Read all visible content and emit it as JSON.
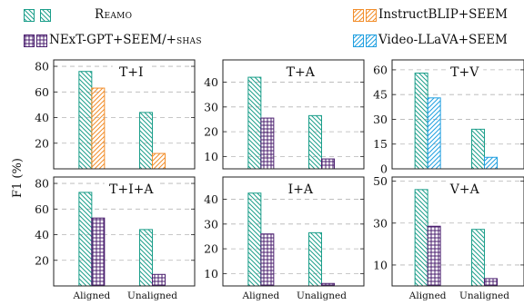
{
  "legend": [
    {
      "label": "Reamo",
      "color": "#1b9e8a",
      "pattern": "diag-back",
      "smallcaps": true
    },
    {
      "label": "InstructBLIP+SEEM",
      "color": "#f28e2b",
      "pattern": "diag-fwd",
      "smallcaps": false
    },
    {
      "label": "NExT-GPT+SEEM/+SHAS",
      "color": "#4b1f6f",
      "pattern": "grid",
      "smallcaps": false
    },
    {
      "label": "Video-LLaVA+SEEM",
      "color": "#1f9fe0",
      "pattern": "diag-fwd",
      "smallcaps": false
    }
  ],
  "ylabel": "F1 (%)",
  "colors": {
    "Reamo": "#1b9e8a",
    "InstructBLIP+SEEM": "#f28e2b",
    "NExT-GPT+SEEM/+SHAS": "#4b1f6f",
    "Video-LLaVA+SEEM": "#1f9fe0"
  },
  "chart_data": [
    {
      "type": "bar",
      "title": "T+I",
      "categories": [
        "Aligned",
        "Unaligned"
      ],
      "ylim": [
        0,
        85
      ],
      "yticks": [
        20,
        40,
        60,
        80
      ],
      "series": [
        {
          "name": "Reamo",
          "values": [
            76,
            44
          ]
        },
        {
          "name": "InstructBLIP+SEEM",
          "values": [
            63,
            12
          ]
        }
      ],
      "show_xticklabels": false
    },
    {
      "type": "bar",
      "title": "T+A",
      "categories": [
        "Aligned",
        "Unaligned"
      ],
      "ylim": [
        5,
        49
      ],
      "yticks": [
        10,
        20,
        30,
        40
      ],
      "series": [
        {
          "name": "Reamo",
          "values": [
            42,
            26.5
          ]
        },
        {
          "name": "NExT-GPT+SEEM/+SHAS",
          "values": [
            25.5,
            9
          ]
        }
      ],
      "show_xticklabels": false
    },
    {
      "type": "bar",
      "title": "T+V",
      "categories": [
        "Aligned",
        "Unaligned"
      ],
      "ylim": [
        0,
        66
      ],
      "yticks": [
        0,
        15,
        30,
        45,
        60
      ],
      "series": [
        {
          "name": "Reamo",
          "values": [
            58,
            24
          ]
        },
        {
          "name": "Video-LLaVA+SEEM",
          "values": [
            43,
            7
          ]
        }
      ],
      "show_xticklabels": false
    },
    {
      "type": "bar",
      "title": "T+I+A",
      "categories": [
        "Aligned",
        "Unaligned"
      ],
      "ylim": [
        0,
        85
      ],
      "yticks": [
        20,
        40,
        60,
        80
      ],
      "series": [
        {
          "name": "Reamo",
          "values": [
            73,
            44
          ]
        },
        {
          "name": "NExT-GPT+SEEM/+SHAS",
          "values": [
            53,
            9
          ]
        }
      ],
      "show_xticklabels": true
    },
    {
      "type": "bar",
      "title": "I+A",
      "categories": [
        "Aligned",
        "Unaligned"
      ],
      "ylim": [
        5,
        49
      ],
      "yticks": [
        10,
        20,
        30,
        40
      ],
      "series": [
        {
          "name": "Reamo",
          "values": [
            42.5,
            26.5
          ]
        },
        {
          "name": "NExT-GPT+SEEM/+SHAS",
          "values": [
            26,
            6
          ]
        }
      ],
      "show_xticklabels": true
    },
    {
      "type": "bar",
      "title": "V+A",
      "categories": [
        "Aligned",
        "Unaligned"
      ],
      "ylim": [
        0,
        52
      ],
      "yticks": [
        10,
        30,
        50
      ],
      "series": [
        {
          "name": "Reamo",
          "values": [
            46,
            27
          ]
        },
        {
          "name": "NExT-GPT+SEEM/+SHAS",
          "values": [
            28.5,
            3.5
          ]
        }
      ],
      "show_xticklabels": true
    }
  ]
}
